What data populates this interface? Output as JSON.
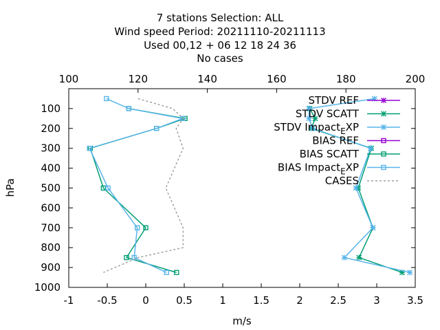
{
  "title_lines": [
    "7 stations Selection: ALL",
    "Wind speed  Period: 20211110-20211113",
    "Used  00,12  + 06 12 18 24 36",
    "No cases"
  ],
  "chart_data": {
    "type": "line",
    "xlabel": "m/s",
    "ylabel": "hPa",
    "xlim": [
      -1,
      3.5
    ],
    "ylim": [
      1000,
      0
    ],
    "x_ticks": [
      -1,
      -0.5,
      0,
      0.5,
      1,
      1.5,
      2,
      2.5,
      3,
      3.5
    ],
    "x_tick_labels": [
      "-1",
      "-0.5",
      "0",
      "0.5",
      "1",
      "1.5",
      "2",
      "2.5",
      "3",
      "3.5"
    ],
    "x2lim": [
      100,
      200
    ],
    "x2_ticks": [
      100,
      120,
      140,
      160,
      180,
      200
    ],
    "x2_tick_labels": [
      "100",
      "120",
      "140",
      "160",
      "180",
      "200"
    ],
    "y_ticks": [
      100,
      200,
      300,
      400,
      500,
      600,
      700,
      800,
      900,
      1000
    ],
    "y_tick_labels": [
      "100",
      "200",
      "300",
      "400",
      "500",
      "600",
      "700",
      "800",
      "900",
      "1000"
    ],
    "legend_position": "top-right",
    "grid": false,
    "series": [
      {
        "name": "STDV REF",
        "color": "#9400d3",
        "marker": "x",
        "x": [],
        "y": []
      },
      {
        "name": "STDV SCATT",
        "color": "#009e73",
        "marker": "x",
        "x": [
          2.13,
          2.2,
          2.15,
          2.93,
          2.76,
          2.95,
          2.77,
          3.33
        ],
        "y": [
          100,
          150,
          200,
          300,
          500,
          700,
          850,
          925
        ]
      },
      {
        "name": "STDV Impact_EXP",
        "color": "#56b4e9",
        "marker": "x",
        "x": [
          2.97,
          2.12,
          2.12,
          2.17,
          2.92,
          2.73,
          2.95,
          2.58,
          3.43
        ],
        "y": [
          50,
          100,
          150,
          200,
          300,
          500,
          700,
          850,
          925
        ]
      },
      {
        "name": "BIAS REF",
        "color": "#9400d3",
        "marker": "square",
        "x": [],
        "y": []
      },
      {
        "name": "BIAS SCATT",
        "color": "#009e73",
        "marker": "square",
        "x": [
          -0.22,
          0.51,
          0.14,
          -0.72,
          -0.55,
          0.0,
          -0.25,
          0.4
        ],
        "y": [
          100,
          150,
          200,
          300,
          500,
          700,
          850,
          925
        ]
      },
      {
        "name": "BIAS Impact_EXP",
        "color": "#56b4e9",
        "marker": "square",
        "x": [
          -0.51,
          -0.22,
          0.48,
          0.14,
          -0.73,
          -0.49,
          -0.11,
          -0.15,
          0.27
        ],
        "y": [
          50,
          100,
          150,
          200,
          300,
          500,
          700,
          850,
          925
        ]
      },
      {
        "name": "CASES",
        "color": "#a0a0a0",
        "marker": "none",
        "axis": "x2",
        "x": [
          120,
          130,
          133,
          131,
          133,
          128,
          133,
          133,
          120,
          110
        ],
        "y": [
          50,
          100,
          150,
          200,
          300,
          500,
          700,
          800,
          850,
          925
        ]
      }
    ]
  }
}
